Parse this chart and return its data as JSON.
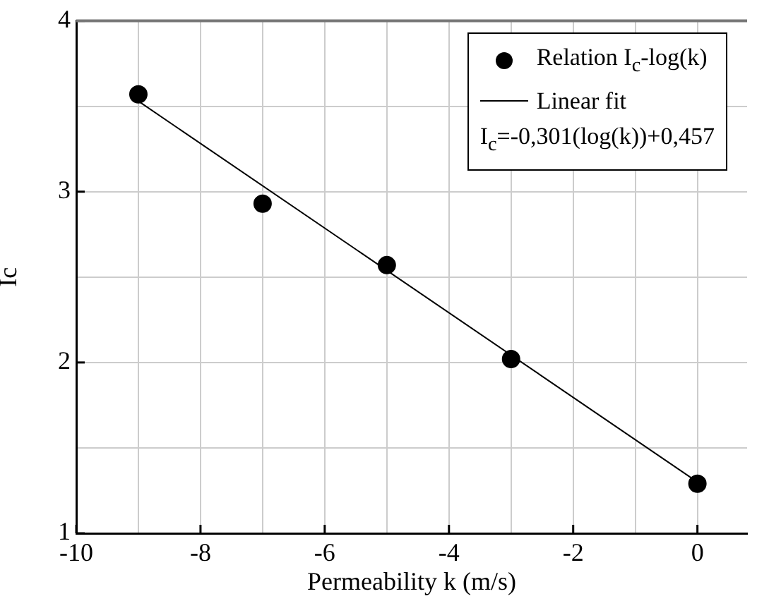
{
  "chart_data": {
    "type": "scatter",
    "xlabel": "Permeability k (m/s)",
    "ylabel": "Ic",
    "xlim": [
      -10,
      0.8
    ],
    "xticks": [
      -10,
      {
        "value": -9,
        "label": null
      },
      -8,
      {
        "value": -7,
        "label": null
      },
      -6,
      {
        "value": -5,
        "label": null
      },
      -4,
      {
        "value": -3,
        "label": null
      },
      -2,
      {
        "value": -1,
        "label": null
      },
      0
    ],
    "ylim": [
      1,
      4
    ],
    "yticks": [
      1,
      {
        "value": 1.5,
        "label": null
      },
      2,
      {
        "value": 2.5,
        "label": null
      },
      3,
      {
        "value": 3.5,
        "label": null
      },
      4
    ],
    "grid": true,
    "legend": "top right",
    "annotations": [
      "I$_{c}$=-0,301(log(k))+0,457"
    ],
    "series": [
      {
        "name": "Relation I$_{c}$-log(k)",
        "marker": "circle",
        "color": "#000000",
        "x": [
          -9,
          -7,
          -5,
          -3,
          0
        ],
        "values": [
          3.57,
          2.93,
          2.57,
          2.02,
          1.29
        ]
      },
      {
        "name": "Linear fit",
        "type": "line",
        "marker": "none",
        "color": "#000000",
        "x": [
          -9,
          0
        ],
        "values": [
          3.53,
          1.3
        ]
      }
    ]
  }
}
